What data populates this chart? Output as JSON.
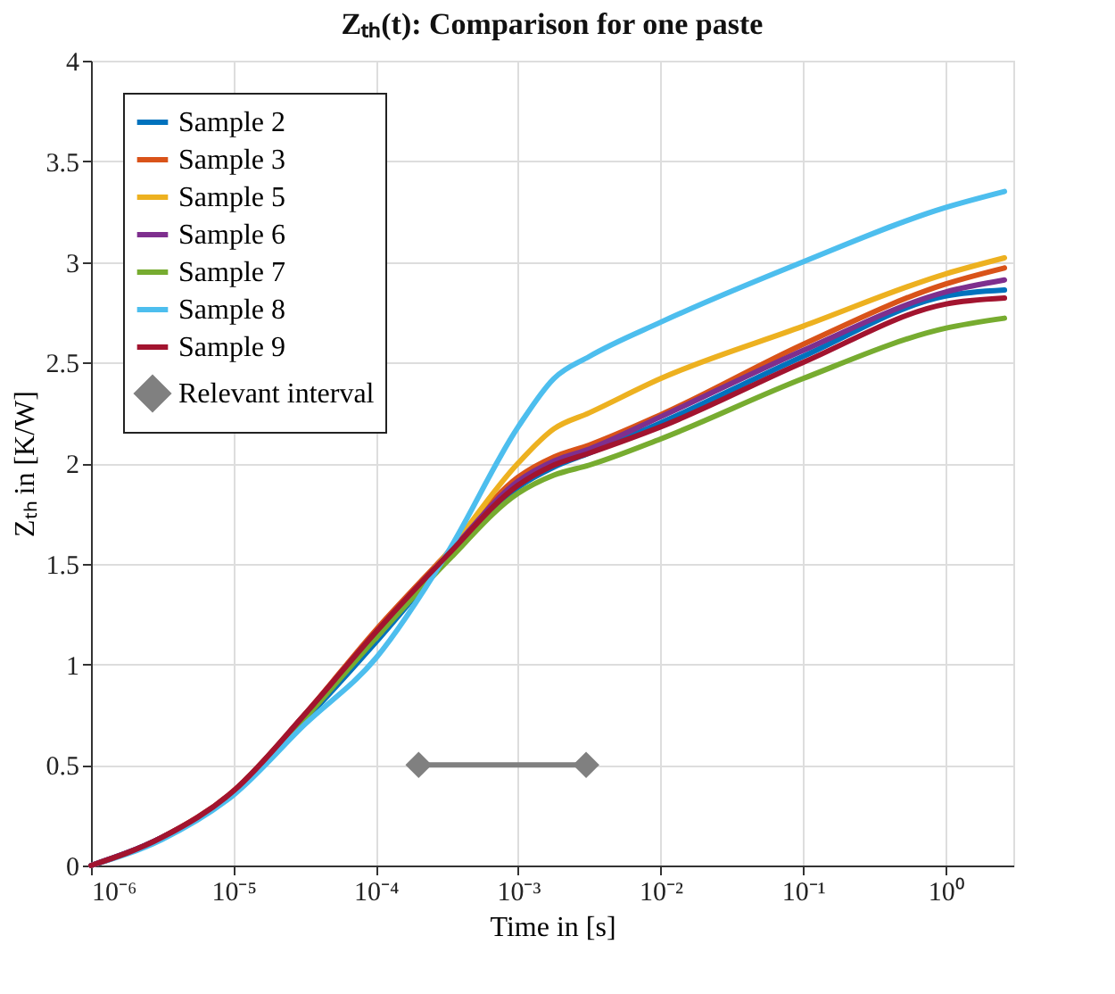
{
  "chart_data": {
    "type": "line",
    "title": "Zₜₕ(t): Comparison for one paste",
    "xlabel": "Time in [s]",
    "ylabel": "Zₜₕ in [K/W]",
    "x": [
      1e-06,
      3.16e-06,
      1e-05,
      3.16e-05,
      0.0001,
      0.000316,
      0.001,
      0.00178,
      0.00316,
      0.01,
      0.1,
      1,
      2.6
    ],
    "series": [
      {
        "name": "Sample 2",
        "color": "#0072bd",
        "values": [
          0,
          0.14,
          0.36,
          0.72,
          1.11,
          1.52,
          1.88,
          1.98,
          2.05,
          2.2,
          2.53,
          2.83,
          2.86
        ]
      },
      {
        "name": "Sample 3",
        "color": "#d95319",
        "values": [
          0,
          0.14,
          0.37,
          0.75,
          1.17,
          1.55,
          1.93,
          2.03,
          2.09,
          2.24,
          2.59,
          2.89,
          2.97
        ]
      },
      {
        "name": "Sample 5",
        "color": "#edb120",
        "values": [
          null,
          null,
          null,
          null,
          1.13,
          1.55,
          2.0,
          2.17,
          2.25,
          2.42,
          2.68,
          2.94,
          3.02
        ]
      },
      {
        "name": "Sample 6",
        "color": "#7e2f8e",
        "values": [
          0,
          0.14,
          0.36,
          0.73,
          1.14,
          1.54,
          1.91,
          2.01,
          2.07,
          2.23,
          2.56,
          2.85,
          2.91
        ]
      },
      {
        "name": "Sample 7",
        "color": "#77ac30",
        "values": [
          null,
          null,
          0.36,
          0.73,
          1.13,
          1.51,
          1.85,
          1.94,
          1.99,
          2.12,
          2.42,
          2.67,
          2.72
        ]
      },
      {
        "name": "Sample 8",
        "color": "#4dbeee",
        "values": [
          0,
          0.13,
          0.35,
          0.7,
          1.03,
          1.55,
          2.18,
          2.42,
          2.53,
          2.7,
          3.0,
          3.27,
          3.35
        ]
      },
      {
        "name": "Sample 9",
        "color": "#a2142f",
        "values": [
          0,
          0.14,
          0.37,
          0.75,
          1.16,
          1.54,
          1.89,
          1.99,
          2.05,
          2.18,
          2.5,
          2.79,
          2.82
        ]
      },
      {
        "name": "Relevant interval",
        "color": "#808080",
        "marker": "diamond",
        "x": [
          0.0002,
          0.003
        ],
        "values": [
          0.5,
          0.5
        ]
      }
    ],
    "xlim": [
      1e-06,
      3
    ],
    "ylim": [
      0,
      4
    ],
    "xticks": [
      {
        "value": 1e-06,
        "label": "10⁻⁶"
      },
      {
        "value": 1e-05,
        "label": "10⁻⁵"
      },
      {
        "value": 0.0001,
        "label": "10⁻⁴"
      },
      {
        "value": 0.001,
        "label": "10⁻³"
      },
      {
        "value": 0.01,
        "label": "10⁻²"
      },
      {
        "value": 0.1,
        "label": "10⁻¹"
      },
      {
        "value": 1,
        "label": "10⁰"
      }
    ],
    "yticks": [
      0,
      0.5,
      1,
      1.5,
      2,
      2.5,
      3,
      3.5,
      4
    ],
    "log": "x",
    "grid": true,
    "legend": "top left",
    "marker": "none",
    "line_style": "solid"
  }
}
